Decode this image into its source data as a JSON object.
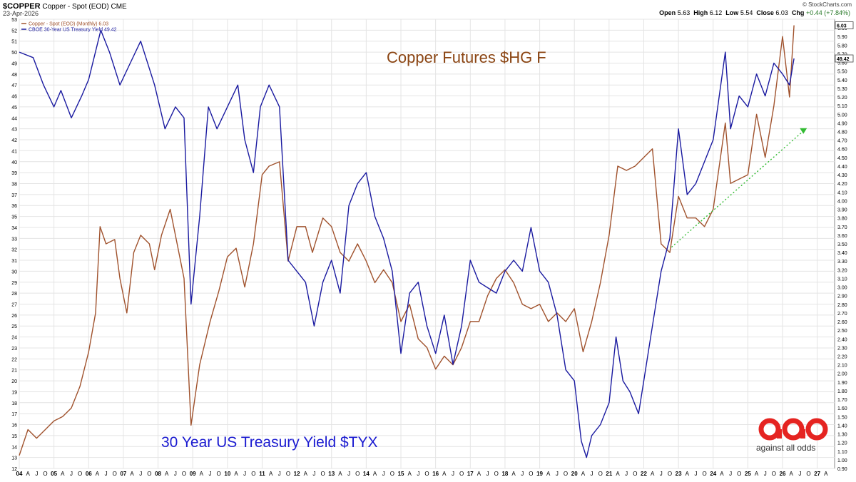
{
  "header": {
    "symbol": "$COPPER",
    "name": "Copper - Spot (EOD) CME",
    "date": "23-Apr-2026",
    "brand": "© StockCharts.com",
    "ohlc": {
      "open_label": "Open",
      "open": "5.63",
      "high_label": "High",
      "high": "6.12",
      "low_label": "Low",
      "low": "5.54",
      "close_label": "Close",
      "close": "6.03",
      "chg_label": "Chg",
      "chg": "+0.44 (+7.84%)"
    }
  },
  "logo": {
    "text": "against all odds",
    "color": "#e52421"
  },
  "chart_data": {
    "type": "line",
    "title": "",
    "x_range": [
      2004.0,
      2027.5
    ],
    "x_tick_labels": [
      {
        "x": 2004,
        "label": "04"
      },
      {
        "x": 2005,
        "label": "05"
      },
      {
        "x": 2006,
        "label": "06"
      },
      {
        "x": 2007,
        "label": "07"
      },
      {
        "x": 2008,
        "label": "08"
      },
      {
        "x": 2009,
        "label": "09"
      },
      {
        "x": 2010,
        "label": "10"
      },
      {
        "x": 2011,
        "label": "11"
      },
      {
        "x": 2012,
        "label": "12"
      },
      {
        "x": 2013,
        "label": "13"
      },
      {
        "x": 2014,
        "label": "14"
      },
      {
        "x": 2015,
        "label": "15"
      },
      {
        "x": 2016,
        "label": "16"
      },
      {
        "x": 2017,
        "label": "17"
      },
      {
        "x": 2018,
        "label": "18"
      },
      {
        "x": 2019,
        "label": "19"
      },
      {
        "x": 2020,
        "label": "20"
      },
      {
        "x": 2021,
        "label": "21"
      },
      {
        "x": 2022,
        "label": "22"
      },
      {
        "x": 2023,
        "label": "23"
      },
      {
        "x": 2024,
        "label": "24"
      },
      {
        "x": 2025,
        "label": "25"
      },
      {
        "x": 2026,
        "label": "26"
      },
      {
        "x": 2027,
        "label": "27"
      }
    ],
    "x_minor_labels": [
      "A",
      "J",
      "O"
    ],
    "left_axis": {
      "range": [
        12,
        53
      ],
      "ticks": [
        12,
        13,
        14,
        15,
        16,
        17,
        18,
        19,
        20,
        21,
        22,
        23,
        24,
        25,
        26,
        27,
        28,
        29,
        30,
        31,
        32,
        33,
        34,
        35,
        36,
        37,
        38,
        39,
        40,
        41,
        42,
        43,
        44,
        45,
        46,
        47,
        48,
        49,
        50,
        51,
        52,
        53
      ]
    },
    "right_axis": {
      "range": [
        0.9,
        6.1
      ],
      "ticks": [
        "0.90",
        "1.00",
        "1.10",
        "1.20",
        "1.30",
        "1.40",
        "1.50",
        "1.60",
        "1.70",
        "1.80",
        "1.90",
        "2.00",
        "2.10",
        "2.20",
        "2.30",
        "2.40",
        "2.50",
        "2.60",
        "2.70",
        "2.80",
        "2.90",
        "3.00",
        "3.10",
        "3.20",
        "3.30",
        "3.40",
        "3.50",
        "3.60",
        "3.70",
        "3.80",
        "3.90",
        "4.00",
        "4.10",
        "4.20",
        "4.30",
        "4.40",
        "4.50",
        "4.60",
        "4.70",
        "4.80",
        "4.90",
        "5.00",
        "5.10",
        "5.20",
        "5.30",
        "5.40",
        "5.50",
        "5.60",
        "5.70",
        "5.80",
        "5.90",
        "6.00"
      ],
      "last_copper_label": "6.03",
      "last_tyx_label": "49.42"
    },
    "grid": true,
    "legend": {
      "position": "top-left",
      "entries": [
        {
          "name": "Copper - Spot (EOD) (Monthly) 6.03",
          "color": "#a0522d"
        },
        {
          "name": "CBOE 30-Year US Treasury Yield 49.42",
          "color": "#1a1aa0"
        }
      ]
    },
    "annotations": [
      {
        "text": "Copper Futures $HG F",
        "color": "#8b4513",
        "position": "upper-center"
      },
      {
        "text": "30 Year US Treasury Yield $TYX",
        "color": "#1a1ad0",
        "position": "lower-left"
      }
    ],
    "series": [
      {
        "name": "Copper - Spot (EOD) (Monthly) 6.03",
        "axis": "right",
        "color": "#a0522d",
        "points": [
          [
            2004.0,
            1.05
          ],
          [
            2004.25,
            1.35
          ],
          [
            2004.5,
            1.25
          ],
          [
            2004.75,
            1.35
          ],
          [
            2005.0,
            1.45
          ],
          [
            2005.25,
            1.5
          ],
          [
            2005.5,
            1.6
          ],
          [
            2005.75,
            1.85
          ],
          [
            2006.0,
            2.25
          ],
          [
            2006.2,
            2.7
          ],
          [
            2006.33,
            3.7
          ],
          [
            2006.5,
            3.5
          ],
          [
            2006.75,
            3.55
          ],
          [
            2006.9,
            3.1
          ],
          [
            2007.1,
            2.7
          ],
          [
            2007.3,
            3.4
          ],
          [
            2007.5,
            3.6
          ],
          [
            2007.75,
            3.5
          ],
          [
            2007.9,
            3.2
          ],
          [
            2008.1,
            3.6
          ],
          [
            2008.35,
            3.9
          ],
          [
            2008.5,
            3.6
          ],
          [
            2008.75,
            3.1
          ],
          [
            2008.95,
            1.4
          ],
          [
            2009.2,
            2.1
          ],
          [
            2009.5,
            2.6
          ],
          [
            2009.75,
            2.95
          ],
          [
            2010.0,
            3.35
          ],
          [
            2010.25,
            3.45
          ],
          [
            2010.5,
            3.0
          ],
          [
            2010.75,
            3.5
          ],
          [
            2011.0,
            4.3
          ],
          [
            2011.2,
            4.4
          ],
          [
            2011.5,
            4.45
          ],
          [
            2011.75,
            3.3
          ],
          [
            2012.0,
            3.7
          ],
          [
            2012.25,
            3.7
          ],
          [
            2012.45,
            3.4
          ],
          [
            2012.75,
            3.8
          ],
          [
            2013.0,
            3.7
          ],
          [
            2013.25,
            3.4
          ],
          [
            2013.5,
            3.3
          ],
          [
            2013.75,
            3.5
          ],
          [
            2014.0,
            3.3
          ],
          [
            2014.25,
            3.05
          ],
          [
            2014.5,
            3.2
          ],
          [
            2014.75,
            3.05
          ],
          [
            2015.0,
            2.6
          ],
          [
            2015.25,
            2.8
          ],
          [
            2015.5,
            2.4
          ],
          [
            2015.75,
            2.3
          ],
          [
            2016.0,
            2.05
          ],
          [
            2016.25,
            2.2
          ],
          [
            2016.5,
            2.1
          ],
          [
            2016.75,
            2.3
          ],
          [
            2017.0,
            2.6
          ],
          [
            2017.25,
            2.6
          ],
          [
            2017.5,
            2.9
          ],
          [
            2017.75,
            3.1
          ],
          [
            2018.0,
            3.2
          ],
          [
            2018.25,
            3.05
          ],
          [
            2018.5,
            2.8
          ],
          [
            2018.75,
            2.75
          ],
          [
            2019.0,
            2.8
          ],
          [
            2019.25,
            2.6
          ],
          [
            2019.5,
            2.7
          ],
          [
            2019.75,
            2.6
          ],
          [
            2020.0,
            2.75
          ],
          [
            2020.25,
            2.25
          ],
          [
            2020.5,
            2.6
          ],
          [
            2020.75,
            3.05
          ],
          [
            2021.0,
            3.6
          ],
          [
            2021.25,
            4.4
          ],
          [
            2021.5,
            4.35
          ],
          [
            2021.75,
            4.4
          ],
          [
            2022.0,
            4.5
          ],
          [
            2022.25,
            4.6
          ],
          [
            2022.5,
            3.5
          ],
          [
            2022.75,
            3.4
          ],
          [
            2023.0,
            4.05
          ],
          [
            2023.25,
            3.8
          ],
          [
            2023.5,
            3.8
          ],
          [
            2023.75,
            3.7
          ],
          [
            2024.0,
            3.9
          ],
          [
            2024.35,
            4.9
          ],
          [
            2024.5,
            4.2
          ],
          [
            2024.75,
            4.25
          ],
          [
            2025.0,
            4.3
          ],
          [
            2025.25,
            5.0
          ],
          [
            2025.5,
            4.5
          ],
          [
            2025.75,
            5.1
          ],
          [
            2026.0,
            5.9
          ],
          [
            2026.2,
            5.2
          ],
          [
            2026.33,
            6.03
          ]
        ]
      },
      {
        "name": "CBOE 30-Year US Treasury Yield 49.42",
        "axis": "left",
        "color": "#1a1aa0",
        "points": [
          [
            2004.0,
            50
          ],
          [
            2004.4,
            49.5
          ],
          [
            2004.7,
            47
          ],
          [
            2005.0,
            45
          ],
          [
            2005.2,
            46.5
          ],
          [
            2005.5,
            44
          ],
          [
            2005.8,
            46
          ],
          [
            2006.0,
            47.5
          ],
          [
            2006.35,
            52
          ],
          [
            2006.6,
            50
          ],
          [
            2006.9,
            47
          ],
          [
            2007.2,
            49
          ],
          [
            2007.5,
            51
          ],
          [
            2007.9,
            47
          ],
          [
            2008.2,
            43
          ],
          [
            2008.5,
            45
          ],
          [
            2008.75,
            44
          ],
          [
            2008.95,
            27
          ],
          [
            2009.2,
            35
          ],
          [
            2009.45,
            45
          ],
          [
            2009.7,
            43
          ],
          [
            2010.0,
            45
          ],
          [
            2010.3,
            47
          ],
          [
            2010.5,
            42
          ],
          [
            2010.75,
            39
          ],
          [
            2010.95,
            45
          ],
          [
            2011.2,
            47
          ],
          [
            2011.5,
            45
          ],
          [
            2011.75,
            31
          ],
          [
            2012.0,
            30
          ],
          [
            2012.25,
            29
          ],
          [
            2012.5,
            25
          ],
          [
            2012.75,
            29
          ],
          [
            2013.0,
            31
          ],
          [
            2013.25,
            28
          ],
          [
            2013.5,
            36
          ],
          [
            2013.75,
            38
          ],
          [
            2014.0,
            39
          ],
          [
            2014.25,
            35
          ],
          [
            2014.5,
            33
          ],
          [
            2014.75,
            30
          ],
          [
            2015.0,
            22.5
          ],
          [
            2015.25,
            28
          ],
          [
            2015.5,
            29
          ],
          [
            2015.75,
            25
          ],
          [
            2016.0,
            22.5
          ],
          [
            2016.25,
            26
          ],
          [
            2016.5,
            21.5
          ],
          [
            2016.75,
            25
          ],
          [
            2017.0,
            31
          ],
          [
            2017.25,
            29
          ],
          [
            2017.5,
            28.5
          ],
          [
            2017.75,
            28
          ],
          [
            2018.0,
            30
          ],
          [
            2018.25,
            31
          ],
          [
            2018.5,
            30
          ],
          [
            2018.75,
            34
          ],
          [
            2019.0,
            30
          ],
          [
            2019.25,
            29
          ],
          [
            2019.5,
            26
          ],
          [
            2019.75,
            21
          ],
          [
            2020.0,
            20
          ],
          [
            2020.2,
            14.5
          ],
          [
            2020.35,
            13
          ],
          [
            2020.5,
            15
          ],
          [
            2020.75,
            16
          ],
          [
            2021.0,
            18
          ],
          [
            2021.2,
            24
          ],
          [
            2021.4,
            20
          ],
          [
            2021.6,
            19
          ],
          [
            2021.85,
            17
          ],
          [
            2022.0,
            20
          ],
          [
            2022.25,
            25
          ],
          [
            2022.5,
            30
          ],
          [
            2022.75,
            33
          ],
          [
            2023.0,
            43
          ],
          [
            2023.25,
            37
          ],
          [
            2023.5,
            38
          ],
          [
            2023.75,
            40
          ],
          [
            2024.0,
            42
          ],
          [
            2024.35,
            50
          ],
          [
            2024.5,
            43
          ],
          [
            2024.75,
            46
          ],
          [
            2025.0,
            45
          ],
          [
            2025.25,
            48
          ],
          [
            2025.5,
            46
          ],
          [
            2025.75,
            49
          ],
          [
            2026.0,
            48
          ],
          [
            2026.2,
            47
          ],
          [
            2026.33,
            49.42
          ]
        ]
      }
    ],
    "trendline": {
      "color": "#33bb33",
      "style": "dotted",
      "from": [
        2022.8,
        32.2
      ],
      "to": [
        2026.6,
        42.8
      ]
    }
  }
}
